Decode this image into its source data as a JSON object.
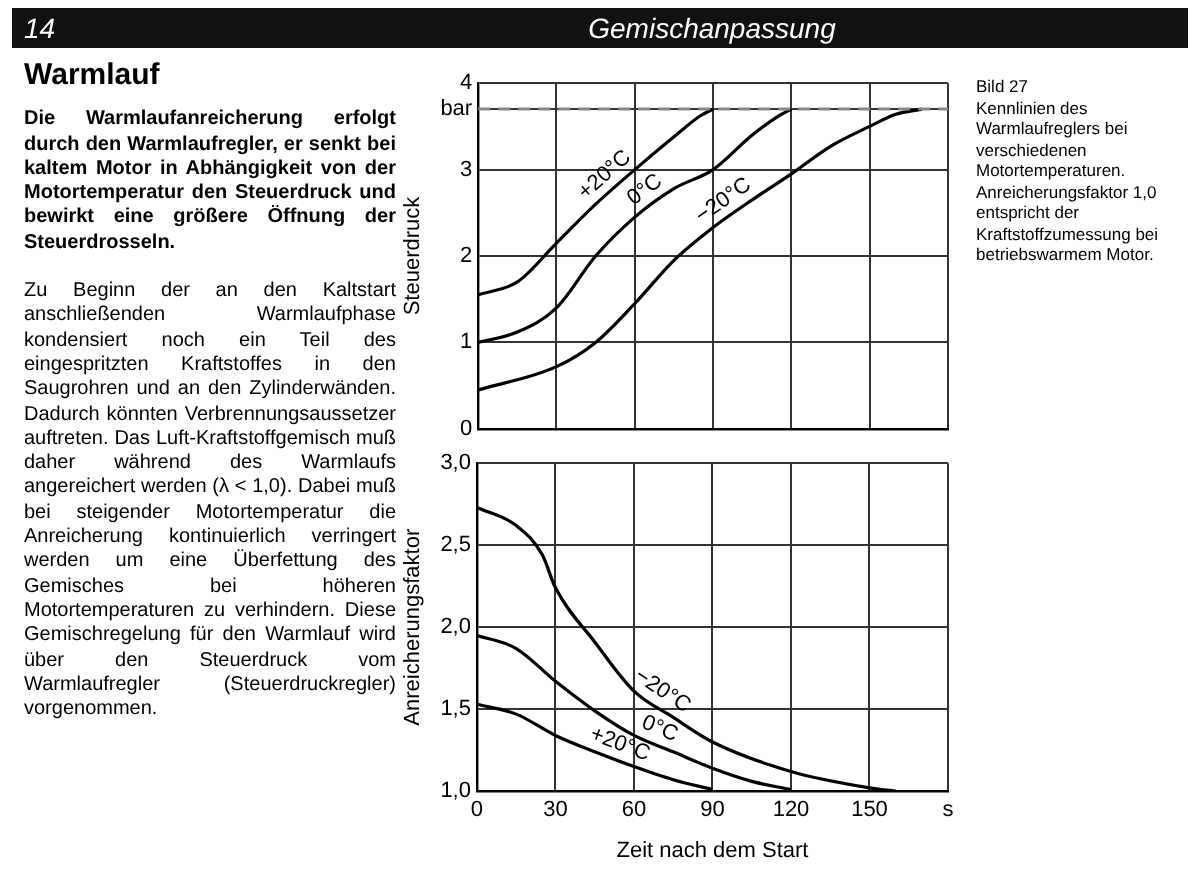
{
  "chart_data": [
    {
      "type": "other",
      "title": "Gemischanpassung",
      "annotations": [
        "14",
        "Warmlauf",
        "Die Warmlaufanreicherung erfolgt durch den Warmlaufregler, er senkt bei kaltem Motor in Abhängigkeit von der Motortemperatur den Steuerdruck und bewirkt eine größere Öffnung der Steuerdrosseln.",
        "Zu Beginn der an den Kaltstart anschließenden Warmlaufphase kondensiert noch ein Teil des eingespritzten Kraftstoffes in den Saugrohren und an den Zylinderwänden. Dadurch könnten Verbrennungsaussetzer auftreten. Das Luft-Kraftstoffgemisch muß daher während des Warmlaufs angereichert werden (λ < 1,0). Dabei muß bei steigender Motortemperatur die Anreicherung kontinuierlich verringert werden um eine Überfettung des Gemisches bei höheren Motortemperaturen zu verhindern. Diese Gemischregelung für den Warmlauf wird über den Steuerdruck vom Warmlaufregler (Steuerdruckregler) vorgenommen."
      ]
    },
    {
      "type": "line",
      "ylabel": "Steuerdruck",
      "xlim": [
        0,
        180
      ],
      "xticks": [
        0,
        30,
        60,
        90,
        120,
        150,
        {
          "value": 180,
          "label": null
        }
      ],
      "ylim": [
        0,
        4
      ],
      "yticks": [
        0,
        1,
        2,
        3,
        {
          "value": 3.7,
          "label": "bar"
        },
        4
      ],
      "tick_labels": "y",
      "grid": true,
      "marker": "none",
      "line_style": "solid",
      "ref_lines": [
        {
          "axis": "y",
          "value": 3.7,
          "color": "#888888",
          "line_style": "dashed"
        }
      ],
      "series": [
        {
          "name": "+20°C",
          "color": "#000000",
          "x": [
            0,
            15,
            30,
            45,
            60,
            75,
            85,
            90
          ],
          "values": [
            1.55,
            1.7,
            2.15,
            2.6,
            3.0,
            3.38,
            3.62,
            3.7
          ]
        },
        {
          "name": "0°C",
          "color": "#000000",
          "x": [
            0,
            15,
            30,
            45,
            60,
            75,
            90,
            105,
            115,
            120
          ],
          "values": [
            1.0,
            1.12,
            1.4,
            2.0,
            2.45,
            2.78,
            3.0,
            3.4,
            3.62,
            3.7
          ]
        },
        {
          "name": "−20°C",
          "color": "#000000",
          "x": [
            0,
            30,
            45,
            60,
            75,
            90,
            105,
            120,
            135,
            150,
            160,
            170
          ],
          "values": [
            0.45,
            0.72,
            1.0,
            1.45,
            1.95,
            2.33,
            2.65,
            2.95,
            3.27,
            3.5,
            3.64,
            3.7
          ]
        }
      ]
    },
    {
      "type": "line",
      "ylabel": "Anreicherungsfaktor",
      "xlabel": "Zeit nach dem Start",
      "xlim": [
        0,
        180
      ],
      "xticks": [
        0,
        30,
        60,
        90,
        120,
        150,
        {
          "value": 180,
          "label": "s"
        }
      ],
      "ylim": [
        1,
        3
      ],
      "yticks": [
        {
          "value": 1,
          "label": "1,0"
        },
        {
          "value": 1.5,
          "label": "1,5"
        },
        {
          "value": 2,
          "label": "2,0"
        },
        {
          "value": 2.5,
          "label": "2,5"
        },
        {
          "value": 3,
          "label": "3,0"
        }
      ],
      "grid": true,
      "marker": "none",
      "line_style": "solid",
      "series": [
        {
          "name": "−20°C",
          "color": "#000000",
          "x": [
            0,
            15,
            25,
            30,
            45,
            60,
            75,
            90,
            120,
            150,
            160
          ],
          "values": [
            2.73,
            2.62,
            2.44,
            2.24,
            1.91,
            1.61,
            1.45,
            1.3,
            1.12,
            1.02,
            1.0
          ]
        },
        {
          "name": "0°C",
          "color": "#000000",
          "x": [
            0,
            15,
            30,
            45,
            60,
            75,
            90,
            105,
            120
          ],
          "values": [
            1.95,
            1.87,
            1.67,
            1.49,
            1.34,
            1.24,
            1.14,
            1.06,
            1.01
          ]
        },
        {
          "name": "+20°C",
          "color": "#000000",
          "x": [
            0,
            15,
            30,
            45,
            60,
            75,
            90
          ],
          "values": [
            1.53,
            1.47,
            1.34,
            1.24,
            1.15,
            1.07,
            1.01
          ]
        }
      ]
    },
    {
      "type": "other",
      "title": "Bild 27",
      "annotations": [
        "Kennlinien des Warmlaufreglers bei verschiedenen Motortemperaturen. Anreicherungsfaktor 1,0 entspricht der Kraftstoffzumessung bei betriebswarmem Motor."
      ]
    }
  ]
}
